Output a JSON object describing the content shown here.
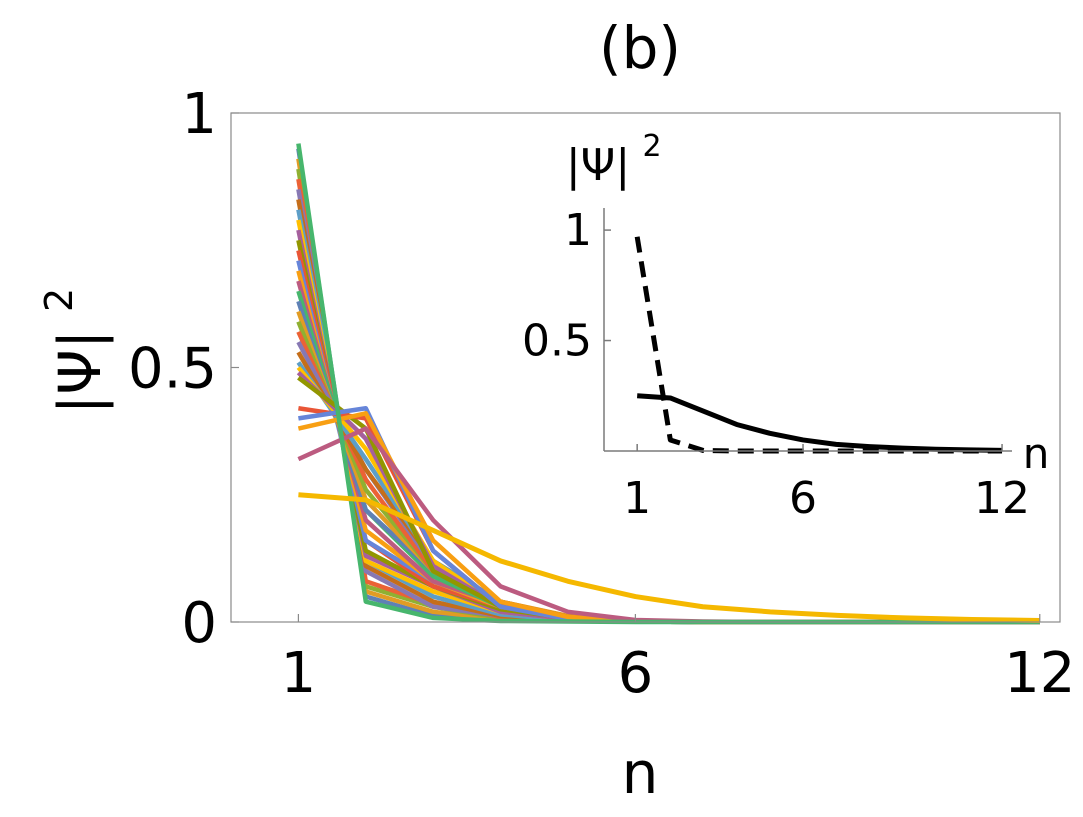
{
  "chart_data": [
    {
      "type": "line",
      "title": "(b)",
      "xlabel": "n",
      "ylabel_base": "|Ψ|",
      "ylabel_sup": "2",
      "xlim": [
        0,
        12.3
      ],
      "ylim": [
        0,
        1
      ],
      "xticks": [
        1,
        6,
        12
      ],
      "yticks": [
        0,
        0.5,
        1
      ],
      "ytick_labels": [
        "0",
        "0.5",
        "1"
      ],
      "grid": false,
      "legend": "none",
      "colors": [
        "#5e81b5",
        "#e19c24",
        "#8fb032",
        "#eb6235",
        "#8778b3",
        "#c56e1a",
        "#5d9ec7",
        "#ffbf00",
        "#a5609d",
        "#929600",
        "#e95536",
        "#6685d9",
        "#f89f13",
        "#bc5b80",
        "#47b66d"
      ],
      "highlight_color": "#f5b800",
      "x": [
        1,
        2,
        3,
        4,
        5,
        6,
        7,
        8,
        9,
        10,
        11,
        12
      ],
      "series": [
        {
          "values": [
            0.93,
            0.05,
            0.012,
            0.004,
            0.002,
            0.001,
            0,
            0,
            0,
            0,
            0,
            0
          ]
        },
        {
          "values": [
            0.91,
            0.06,
            0.02,
            0.006,
            0.002,
            0.001,
            0,
            0,
            0,
            0,
            0,
            0
          ]
        },
        {
          "values": [
            0.89,
            0.07,
            0.03,
            0.008,
            0.002,
            0.001,
            0,
            0,
            0,
            0,
            0,
            0
          ]
        },
        {
          "values": [
            0.87,
            0.08,
            0.035,
            0.01,
            0.003,
            0.001,
            0,
            0,
            0,
            0,
            0,
            0
          ]
        },
        {
          "values": [
            0.85,
            0.1,
            0.03,
            0.012,
            0.004,
            0.001,
            0,
            0,
            0,
            0,
            0,
            0
          ]
        },
        {
          "values": [
            0.83,
            0.11,
            0.04,
            0.012,
            0.004,
            0.001,
            0,
            0,
            0,
            0,
            0,
            0
          ]
        },
        {
          "values": [
            0.81,
            0.12,
            0.05,
            0.015,
            0.003,
            0.001,
            0,
            0,
            0,
            0,
            0,
            0
          ]
        },
        {
          "values": [
            0.79,
            0.12,
            0.06,
            0.02,
            0.006,
            0.002,
            0,
            0,
            0,
            0,
            0,
            0
          ]
        },
        {
          "values": [
            0.77,
            0.13,
            0.07,
            0.02,
            0.006,
            0.002,
            0,
            0,
            0,
            0,
            0,
            0
          ]
        },
        {
          "values": [
            0.75,
            0.14,
            0.07,
            0.025,
            0.008,
            0.002,
            0,
            0,
            0,
            0,
            0,
            0
          ]
        },
        {
          "values": [
            0.73,
            0.16,
            0.07,
            0.03,
            0.008,
            0.002,
            0,
            0,
            0,
            0,
            0,
            0
          ]
        },
        {
          "values": [
            0.71,
            0.16,
            0.08,
            0.03,
            0.01,
            0.003,
            0,
            0,
            0,
            0,
            0,
            0
          ]
        },
        {
          "values": [
            0.69,
            0.18,
            0.08,
            0.03,
            0.01,
            0.003,
            0,
            0,
            0,
            0,
            0,
            0
          ]
        },
        {
          "values": [
            0.67,
            0.2,
            0.08,
            0.035,
            0.01,
            0.003,
            0,
            0,
            0,
            0,
            0,
            0
          ]
        },
        {
          "values": [
            0.65,
            0.22,
            0.09,
            0.03,
            0.008,
            0.002,
            0,
            0,
            0,
            0,
            0,
            0
          ]
        },
        {
          "values": [
            0.63,
            0.22,
            0.1,
            0.035,
            0.01,
            0.003,
            0,
            0,
            0,
            0,
            0,
            0
          ]
        },
        {
          "values": [
            0.61,
            0.24,
            0.1,
            0.04,
            0.012,
            0.003,
            0,
            0,
            0,
            0,
            0,
            0
          ]
        },
        {
          "values": [
            0.59,
            0.26,
            0.1,
            0.04,
            0.01,
            0.002,
            0,
            0,
            0,
            0,
            0,
            0
          ]
        },
        {
          "values": [
            0.57,
            0.28,
            0.1,
            0.04,
            0.01,
            0.002,
            0,
            0,
            0,
            0,
            0,
            0
          ]
        },
        {
          "values": [
            0.55,
            0.3,
            0.11,
            0.03,
            0.008,
            0.002,
            0,
            0,
            0,
            0,
            0,
            0
          ]
        },
        {
          "values": [
            0.53,
            0.3,
            0.12,
            0.04,
            0.01,
            0.002,
            0,
            0,
            0,
            0,
            0,
            0
          ]
        },
        {
          "values": [
            0.51,
            0.32,
            0.12,
            0.04,
            0.008,
            0.002,
            0,
            0,
            0,
            0,
            0,
            0
          ]
        },
        {
          "values": [
            0.5,
            0.34,
            0.12,
            0.03,
            0.008,
            0.002,
            0,
            0,
            0,
            0,
            0,
            0
          ]
        },
        {
          "values": [
            0.49,
            0.36,
            0.11,
            0.03,
            0.008,
            0.002,
            0,
            0,
            0,
            0,
            0,
            0
          ]
        },
        {
          "values": [
            0.48,
            0.38,
            0.1,
            0.03,
            0.006,
            0.001,
            0,
            0,
            0,
            0,
            0,
            0
          ]
        },
        {
          "values": [
            0.42,
            0.4,
            0.14,
            0.03,
            0.008,
            0.002,
            0,
            0,
            0,
            0,
            0,
            0
          ]
        },
        {
          "values": [
            0.4,
            0.42,
            0.14,
            0.03,
            0.006,
            0.001,
            0,
            0,
            0,
            0,
            0,
            0
          ]
        },
        {
          "values": [
            0.38,
            0.41,
            0.16,
            0.04,
            0.01,
            0.002,
            0,
            0,
            0,
            0,
            0,
            0
          ]
        },
        {
          "values": [
            0.32,
            0.38,
            0.2,
            0.07,
            0.02,
            0.004,
            0.001,
            0,
            0,
            0,
            0,
            0
          ]
        },
        {
          "values": [
            0.94,
            0.04,
            0.008,
            0.002,
            0.001,
            0,
            0,
            0,
            0,
            0,
            0,
            0
          ]
        }
      ],
      "highlight": {
        "values": [
          0.25,
          0.24,
          0.18,
          0.12,
          0.08,
          0.05,
          0.03,
          0.02,
          0.013,
          0.008,
          0.005,
          0.003
        ]
      }
    },
    {
      "type": "line",
      "title": "",
      "xlabel": "n",
      "ylabel_base": "|Ψ|",
      "ylabel_sup": "2",
      "xlim": [
        0,
        12.3
      ],
      "ylim": [
        0,
        1.1
      ],
      "xticks": [
        1,
        6,
        12
      ],
      "yticks": [
        0.5,
        1
      ],
      "ytick_labels": [
        "0.5",
        "1"
      ],
      "grid": false,
      "legend": "none",
      "x": [
        1,
        2,
        3,
        4,
        5,
        6,
        7,
        8,
        9,
        10,
        11,
        12
      ],
      "series": [
        {
          "style": "solid",
          "values": [
            0.25,
            0.24,
            0.18,
            0.12,
            0.08,
            0.05,
            0.03,
            0.02,
            0.013,
            0.008,
            0.005,
            0.003
          ]
        },
        {
          "style": "dashed",
          "values": [
            0.97,
            0.05,
            0.002,
            0,
            0,
            0,
            0,
            0,
            0,
            0,
            0,
            0
          ]
        }
      ]
    }
  ]
}
